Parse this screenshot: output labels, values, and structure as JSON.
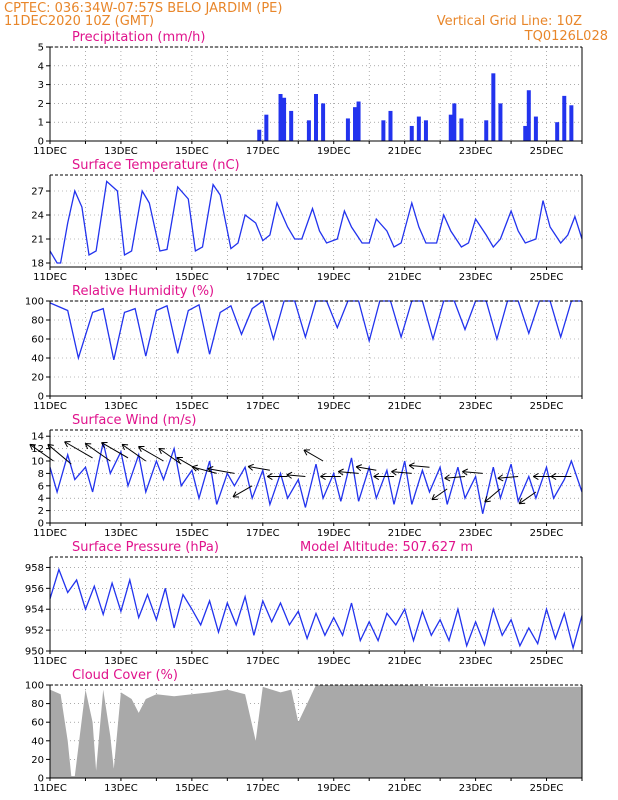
{
  "header": {
    "line1_left": "CPTEC:   036:34W-07:57S   BELO JARDIM (PE)",
    "line2_left": "11DEC2020  10Z  (GMT)",
    "line2_right": "Vertical Grid Line: 10Z",
    "line3_right": "TQ0126L028"
  },
  "colors": {
    "header": "#e8862a",
    "title": "#e0138c",
    "series": "#2233ee",
    "cloud": "#a9a9a9",
    "grid": "#7a7a7a"
  },
  "x_axis": {
    "labels": [
      "11DEC",
      "13DEC",
      "15DEC",
      "17DEC",
      "19DEC",
      "21DEC",
      "23DEC",
      "25DEC"
    ],
    "days": [
      11,
      13,
      15,
      17,
      19,
      21,
      23,
      25
    ],
    "range": [
      11.0,
      26.0
    ]
  },
  "chart_data": [
    {
      "type": "bar",
      "title": "Precipitation  (mm/h)",
      "ylim": [
        0,
        5
      ],
      "yticks": [
        "0",
        "1",
        "2",
        "3",
        "4",
        "5"
      ],
      "x": [
        16.9,
        17.1,
        17.5,
        17.6,
        17.8,
        18.3,
        18.5,
        18.7,
        19.4,
        19.6,
        19.7,
        20.4,
        20.6,
        21.2,
        21.4,
        21.6,
        22.3,
        22.4,
        22.6,
        23.3,
        23.5,
        23.7,
        24.4,
        24.5,
        24.7,
        25.3,
        25.5,
        25.7
      ],
      "values": [
        0.6,
        1.4,
        2.5,
        2.3,
        1.6,
        1.1,
        2.5,
        2.0,
        1.2,
        1.8,
        2.1,
        1.1,
        1.6,
        0.8,
        1.3,
        1.1,
        1.4,
        2.0,
        1.2,
        1.1,
        3.6,
        2.0,
        0.8,
        2.7,
        1.3,
        1.0,
        2.4,
        1.9
      ]
    },
    {
      "type": "line",
      "title": "Surface Temperature  (nC)",
      "ylim": [
        17.5,
        29.0
      ],
      "yticks": [
        "18",
        "21",
        "24",
        "27"
      ],
      "series": [
        {
          "x": [
            11.0,
            11.2,
            11.3,
            11.5,
            11.7,
            11.9,
            12.1,
            12.3,
            12.6,
            12.9,
            13.1,
            13.3,
            13.6,
            13.8,
            14.1,
            14.3,
            14.6,
            14.9,
            15.1,
            15.3,
            15.6,
            15.8,
            16.1,
            16.3,
            16.5,
            16.8,
            17.0,
            17.2,
            17.4,
            17.7,
            17.9,
            18.1,
            18.4,
            18.6,
            18.8,
            19.1,
            19.3,
            19.5,
            19.8,
            20.0,
            20.2,
            20.5,
            20.7,
            20.9,
            21.2,
            21.4,
            21.6,
            21.9,
            22.1,
            22.3,
            22.6,
            22.8,
            23.0,
            23.3,
            23.5,
            23.7,
            24.0,
            24.2,
            24.4,
            24.7,
            24.9,
            25.1,
            25.4,
            25.6,
            25.8,
            26.0
          ],
          "values": [
            19.5,
            18.0,
            18.0,
            23.0,
            27.0,
            25.0,
            19.0,
            19.5,
            28.2,
            27.0,
            19.0,
            19.5,
            27.0,
            25.5,
            19.5,
            19.7,
            27.5,
            26.0,
            19.5,
            20.0,
            27.8,
            26.5,
            19.8,
            20.5,
            24.0,
            23.0,
            20.8,
            21.5,
            25.5,
            22.5,
            21.0,
            21.0,
            24.8,
            22.0,
            20.5,
            21.0,
            24.5,
            22.5,
            20.5,
            20.5,
            23.5,
            22.0,
            20.0,
            20.5,
            25.5,
            22.5,
            20.5,
            20.5,
            24.0,
            22.0,
            20.0,
            20.5,
            23.5,
            21.5,
            20.0,
            21.0,
            24.5,
            22.0,
            20.5,
            21.0,
            25.8,
            22.5,
            20.5,
            21.5,
            23.8,
            21.0
          ]
        }
      ]
    },
    {
      "type": "line",
      "title": "Relative Humidity  (%)",
      "ylim": [
        0,
        100
      ],
      "yticks": [
        "0",
        "20",
        "40",
        "60",
        "80",
        "100"
      ],
      "series": [
        {
          "x": [
            11.0,
            11.5,
            11.8,
            12.2,
            12.5,
            12.8,
            13.1,
            13.4,
            13.7,
            14.0,
            14.3,
            14.6,
            14.9,
            15.2,
            15.5,
            15.8,
            16.1,
            16.4,
            16.7,
            17.0,
            17.3,
            17.6,
            17.9,
            18.2,
            18.5,
            18.8,
            19.1,
            19.4,
            19.7,
            20.0,
            20.3,
            20.6,
            20.9,
            21.2,
            21.5,
            21.8,
            22.1,
            22.4,
            22.7,
            23.0,
            23.3,
            23.6,
            23.9,
            24.2,
            24.5,
            24.8,
            25.1,
            25.4,
            25.7,
            26.0
          ],
          "values": [
            98,
            90,
            40,
            88,
            92,
            38,
            88,
            92,
            42,
            90,
            95,
            45,
            90,
            96,
            44,
            88,
            95,
            65,
            92,
            100,
            60,
            100,
            100,
            62,
            100,
            100,
            72,
            100,
            100,
            58,
            100,
            100,
            62,
            100,
            100,
            60,
            100,
            100,
            70,
            100,
            100,
            60,
            100,
            100,
            66,
            100,
            100,
            62,
            100,
            100
          ]
        }
      ]
    },
    {
      "type": "line",
      "title": "Surface Wind  (m/s)",
      "ylim": [
        0,
        15
      ],
      "yticks": [
        "0",
        "2",
        "4",
        "6",
        "8",
        "10",
        "12",
        "14"
      ],
      "series": [
        {
          "x": [
            11.0,
            11.2,
            11.5,
            11.7,
            12.0,
            12.2,
            12.5,
            12.7,
            13.0,
            13.2,
            13.5,
            13.7,
            14.0,
            14.2,
            14.5,
            14.7,
            15.0,
            15.2,
            15.5,
            15.7,
            16.0,
            16.2,
            16.5,
            16.7,
            17.0,
            17.2,
            17.5,
            17.7,
            18.0,
            18.2,
            18.5,
            18.7,
            19.0,
            19.2,
            19.5,
            19.7,
            20.0,
            20.2,
            20.5,
            20.7,
            21.0,
            21.2,
            21.5,
            21.7,
            22.0,
            22.2,
            22.5,
            22.7,
            23.0,
            23.2,
            23.5,
            23.7,
            24.0,
            24.2,
            24.5,
            24.7,
            25.0,
            25.2,
            25.5,
            25.7,
            26.0
          ],
          "values": [
            9.0,
            5.0,
            11.0,
            7.0,
            9.0,
            5.0,
            13.0,
            8.0,
            11.5,
            6.0,
            11.0,
            5.0,
            10.0,
            7.0,
            12.0,
            6.0,
            8.5,
            4.0,
            10.0,
            3.0,
            8.0,
            6.0,
            9.0,
            4.0,
            8.5,
            3.0,
            8.0,
            4.0,
            7.0,
            2.5,
            9.5,
            4.0,
            8.0,
            3.5,
            10.5,
            3.5,
            9.0,
            4.0,
            8.5,
            3.0,
            10.0,
            3.0,
            8.5,
            5.0,
            9.0,
            3.0,
            9.0,
            4.0,
            7.5,
            1.5,
            9.0,
            4.0,
            9.5,
            3.5,
            7.5,
            4.0,
            9.0,
            4.0,
            7.0,
            10.0,
            5.0
          ]
        }
      ],
      "wind_barbs": [
        {
          "x": 11.1,
          "y": 10.0,
          "dir": 305,
          "len": 8.5
        },
        {
          "x": 11.6,
          "y": 9.5,
          "dir": 310,
          "len": 9.0
        },
        {
          "x": 12.2,
          "y": 10.5,
          "dir": 300,
          "len": 9.5
        },
        {
          "x": 12.7,
          "y": 10.0,
          "dir": 305,
          "len": 9.0
        },
        {
          "x": 13.2,
          "y": 10.5,
          "dir": 300,
          "len": 9.0
        },
        {
          "x": 13.7,
          "y": 10.0,
          "dir": 305,
          "len": 8.5
        },
        {
          "x": 14.2,
          "y": 10.0,
          "dir": 300,
          "len": 8.5
        },
        {
          "x": 14.7,
          "y": 9.5,
          "dir": 305,
          "len": 8.0
        },
        {
          "x": 15.2,
          "y": 8.5,
          "dir": 300,
          "len": 7.5
        },
        {
          "x": 15.7,
          "y": 8.0,
          "dir": 285,
          "len": 7.5
        },
        {
          "x": 16.2,
          "y": 8.0,
          "dir": 280,
          "len": 8.0
        },
        {
          "x": 16.7,
          "y": 6.0,
          "dir": 240,
          "len": 6.5
        },
        {
          "x": 17.2,
          "y": 8.5,
          "dir": 280,
          "len": 6.5
        },
        {
          "x": 17.7,
          "y": 7.5,
          "dir": 270,
          "len": 6.0
        },
        {
          "x": 18.2,
          "y": 7.5,
          "dir": 275,
          "len": 5.5
        },
        {
          "x": 18.7,
          "y": 10.0,
          "dir": 300,
          "len": 6.5
        },
        {
          "x": 19.2,
          "y": 7.5,
          "dir": 270,
          "len": 6.0
        },
        {
          "x": 19.7,
          "y": 8.0,
          "dir": 275,
          "len": 6.0
        },
        {
          "x": 20.2,
          "y": 8.5,
          "dir": 280,
          "len": 6.0
        },
        {
          "x": 20.7,
          "y": 7.5,
          "dir": 270,
          "len": 6.0
        },
        {
          "x": 21.2,
          "y": 8.0,
          "dir": 275,
          "len": 6.0
        },
        {
          "x": 21.7,
          "y": 9.0,
          "dir": 275,
          "len": 6.0
        },
        {
          "x": 22.2,
          "y": 5.5,
          "dir": 235,
          "len": 5.5
        },
        {
          "x": 22.7,
          "y": 7.5,
          "dir": 265,
          "len": 6.0
        },
        {
          "x": 23.2,
          "y": 8.0,
          "dir": 275,
          "len": 6.0
        },
        {
          "x": 23.7,
          "y": 5.5,
          "dir": 230,
          "len": 6.0
        },
        {
          "x": 24.2,
          "y": 7.5,
          "dir": 265,
          "len": 6.0
        },
        {
          "x": 24.7,
          "y": 5.0,
          "dir": 235,
          "len": 6.0
        },
        {
          "x": 25.2,
          "y": 7.5,
          "dir": 270,
          "len": 6.0
        },
        {
          "x": 25.7,
          "y": 7.5,
          "dir": 270,
          "len": 6.0
        }
      ]
    },
    {
      "type": "line",
      "title": "Surface Pressure  (hPa)",
      "subtitle": "Model Altitude: 507.627  m",
      "ylim": [
        950,
        959
      ],
      "yticks": [
        "950",
        "952",
        "954",
        "956",
        "958"
      ],
      "series": [
        {
          "x": [
            11.0,
            11.25,
            11.5,
            11.75,
            12.0,
            12.25,
            12.5,
            12.75,
            13.0,
            13.25,
            13.5,
            13.75,
            14.0,
            14.25,
            14.5,
            14.75,
            15.0,
            15.25,
            15.5,
            15.75,
            16.0,
            16.25,
            16.5,
            16.75,
            17.0,
            17.25,
            17.5,
            17.75,
            18.0,
            18.25,
            18.5,
            18.75,
            19.0,
            19.25,
            19.5,
            19.75,
            20.0,
            20.25,
            20.5,
            20.75,
            21.0,
            21.25,
            21.5,
            21.75,
            22.0,
            22.25,
            22.5,
            22.75,
            23.0,
            23.25,
            23.5,
            23.75,
            24.0,
            24.25,
            24.5,
            24.75,
            25.0,
            25.25,
            25.5,
            25.75,
            26.0
          ],
          "values": [
            955.0,
            957.8,
            955.6,
            956.8,
            954.0,
            956.2,
            953.5,
            956.5,
            953.8,
            956.8,
            953.2,
            955.4,
            953.0,
            956.0,
            952.2,
            955.4,
            954.0,
            952.5,
            954.8,
            951.8,
            954.6,
            952.5,
            955.2,
            951.5,
            954.8,
            952.8,
            954.6,
            952.5,
            953.8,
            951.2,
            953.6,
            951.5,
            953.2,
            951.5,
            954.6,
            951.0,
            952.8,
            951.0,
            953.6,
            952.5,
            954.0,
            951.0,
            953.8,
            951.5,
            953.0,
            951.0,
            954.0,
            950.5,
            952.8,
            950.6,
            954.0,
            951.5,
            953.0,
            950.5,
            952.2,
            950.7,
            954.0,
            951.2,
            953.6,
            950.3,
            953.4
          ]
        }
      ]
    },
    {
      "type": "area",
      "title": "Cloud Cover  (%)",
      "ylim": [
        0,
        100
      ],
      "yticks": [
        "0",
        "20",
        "40",
        "60",
        "80",
        "100"
      ],
      "series": [
        {
          "x": [
            11.0,
            11.3,
            11.5,
            11.6,
            11.7,
            12.0,
            12.2,
            12.3,
            12.5,
            12.7,
            12.8,
            13.0,
            13.3,
            13.5,
            13.7,
            14.0,
            14.5,
            15.0,
            15.5,
            16.0,
            16.5,
            16.8,
            17.0,
            17.5,
            17.8,
            18.0,
            18.5,
            19.0,
            20.0,
            21.0,
            22.0,
            23.0,
            24.0,
            25.0,
            26.0
          ],
          "values": [
            95,
            90,
            40,
            2,
            2,
            95,
            60,
            8,
            95,
            45,
            10,
            92,
            85,
            70,
            85,
            90,
            88,
            90,
            92,
            95,
            90,
            40,
            98,
            92,
            95,
            60,
            100,
            100,
            100,
            100,
            98,
            98,
            98,
            98,
            98
          ]
        }
      ]
    }
  ]
}
